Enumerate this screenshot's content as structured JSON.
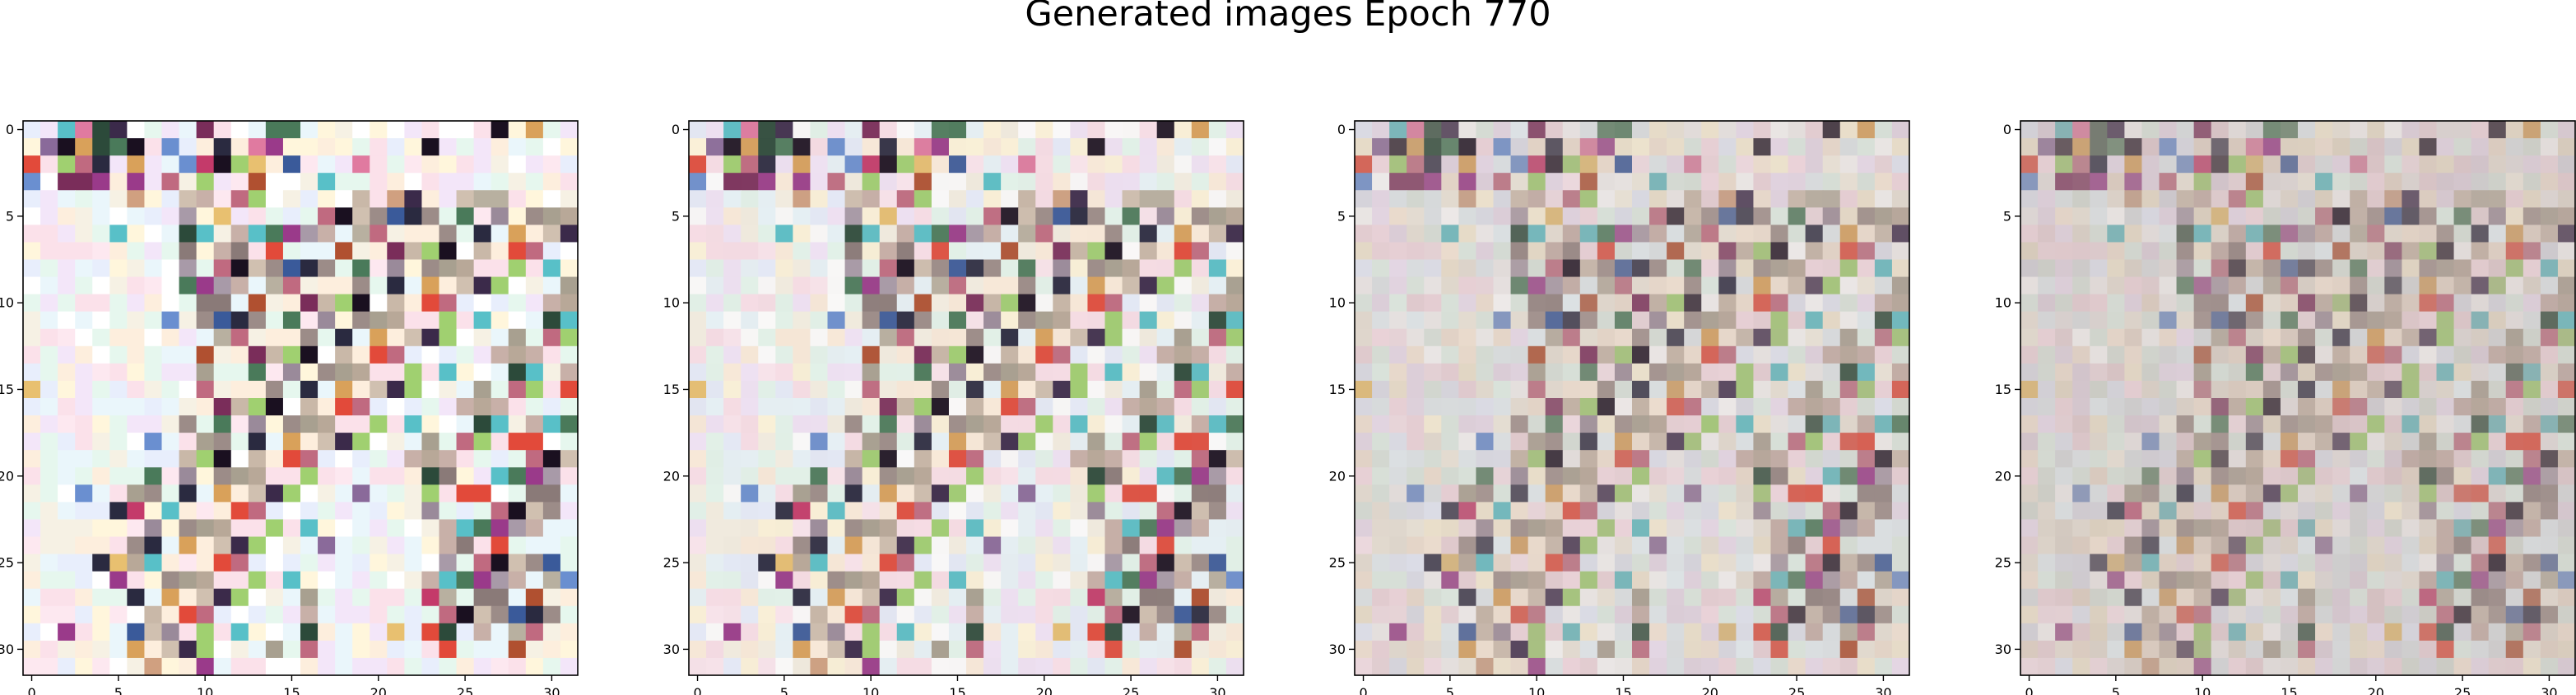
{
  "title": "Generated images Epoch 770",
  "chart_data": {
    "type": "heatmap",
    "grid": false,
    "image_shape": [
      32,
      32,
      3
    ],
    "x_ticks": [
      0,
      5,
      10,
      15,
      20,
      25,
      30
    ],
    "y_ticks": [
      0,
      5,
      10,
      15,
      20,
      25,
      30
    ],
    "xlim": [
      -0.5,
      31.5
    ],
    "ylim": [
      31.5,
      -0.5
    ],
    "panels": [
      {
        "index": 0,
        "noise_blend": 0.0
      },
      {
        "index": 1,
        "noise_blend": 0.12
      },
      {
        "index": 2,
        "noise_blend": 0.4
      },
      {
        "index": 3,
        "noise_blend": 0.55
      }
    ]
  }
}
